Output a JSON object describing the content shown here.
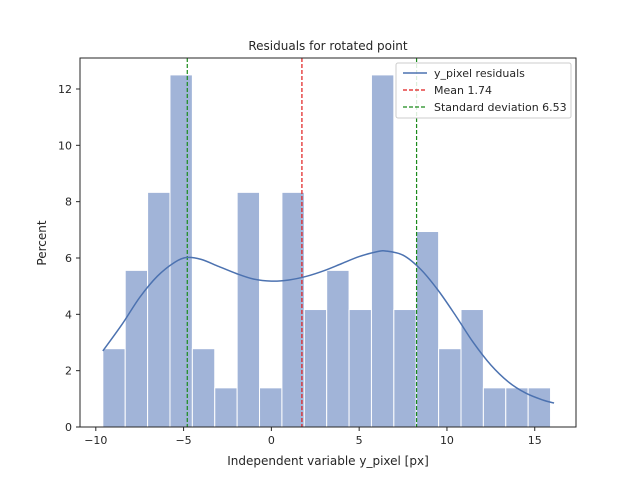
{
  "chart_data": {
    "type": "bar",
    "title": "Residuals for rotated point",
    "xlabel": "Independent variable y_pixel [px]",
    "ylabel": "Percent",
    "xlim": [
      -10.9,
      17.35
    ],
    "ylim": [
      0,
      13.1
    ],
    "xticks": [
      -10,
      -5,
      0,
      5,
      10,
      15
    ],
    "yticks": [
      0,
      2,
      4,
      6,
      8,
      10,
      12
    ],
    "grid": false,
    "legend_position": "top-right",
    "histogram": {
      "name": "y_pixel residuals",
      "bin_start": -9.6,
      "bin_width": 1.275,
      "values": [
        2.78,
        5.56,
        8.33,
        12.5,
        2.78,
        1.39,
        8.33,
        1.39,
        8.33,
        4.17,
        5.56,
        4.17,
        12.5,
        4.17,
        6.94,
        2.78,
        4.17,
        1.39,
        1.39,
        1.39
      ],
      "color": "#a1b4d8"
    },
    "kde": {
      "name": "y_pixel residuals",
      "color": "#4c72b0",
      "x": [
        -9.6,
        -8.5,
        -7.5,
        -6.5,
        -5.5,
        -4.8,
        -4.0,
        -3.0,
        -2.0,
        -1.0,
        0.0,
        1.0,
        2.0,
        3.0,
        4.0,
        5.0,
        6.0,
        6.5,
        7.5,
        8.5,
        9.5,
        10.5,
        11.5,
        12.5,
        13.5,
        14.5,
        15.5,
        16.1
      ],
      "y": [
        2.7,
        3.65,
        4.6,
        5.35,
        5.85,
        6.02,
        5.95,
        5.7,
        5.45,
        5.25,
        5.18,
        5.22,
        5.35,
        5.55,
        5.8,
        6.05,
        6.22,
        6.25,
        6.1,
        5.6,
        4.85,
        3.95,
        3.0,
        2.2,
        1.6,
        1.2,
        0.95,
        0.85
      ]
    },
    "lines": [
      {
        "name": "Mean 1.74",
        "x": 1.74,
        "color": "#e01b1b",
        "dash": "dashed"
      },
      {
        "name": "Standard deviation 6.53",
        "x": 8.27,
        "color": "#1a8a1a",
        "dash": "dashed",
        "show_in_legend": true
      },
      {
        "name": "",
        "x": -4.79,
        "color": "#1a8a1a",
        "dash": "dashed",
        "show_in_legend": false
      }
    ],
    "legend": [
      "y_pixel residuals",
      "Mean 1.74",
      "Standard deviation 6.53"
    ]
  }
}
